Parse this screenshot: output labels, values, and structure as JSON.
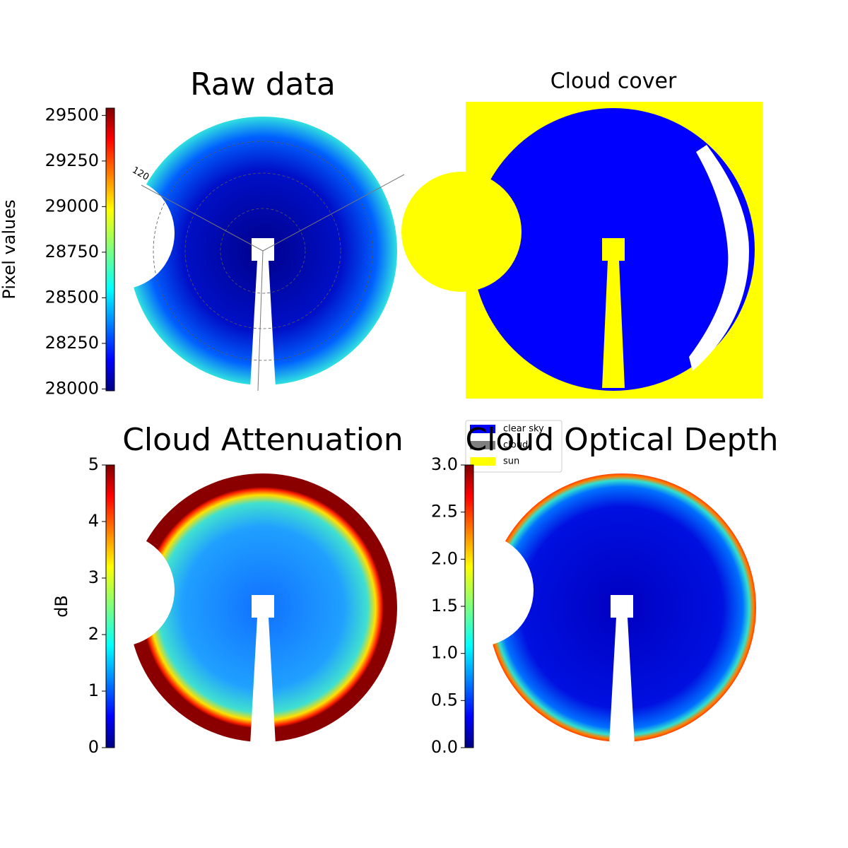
{
  "chart_data": [
    {
      "type": "image",
      "title": "Raw data",
      "colorbar_label": "Pixel values",
      "clim": [
        27990,
        29540
      ],
      "cticks": [
        28000,
        28250,
        28500,
        28750,
        29000,
        29250,
        29500
      ],
      "colormap": "jet",
      "annotations": [
        "120"
      ]
    },
    {
      "type": "classification",
      "title": "Cloud cover",
      "legend": [
        {
          "label": "clear sky",
          "color": "#0000ff"
        },
        {
          "label": "cloud",
          "color": "#808080"
        },
        {
          "label": "sun",
          "color": "#ffff00"
        }
      ]
    },
    {
      "type": "image",
      "title": "Cloud Attenuation",
      "colorbar_label": "dB",
      "clim": [
        0,
        5
      ],
      "cticks": [
        0,
        1,
        2,
        3,
        4,
        5
      ],
      "colormap": "jet"
    },
    {
      "type": "image",
      "title": "Cloud Optical Depth",
      "clim": [
        0,
        3
      ],
      "colormap": "jet",
      "cticks": [
        {
          "value": 0,
          "label": "0.0"
        },
        {
          "value": 0.5,
          "label": "0.5"
        },
        {
          "value": 1,
          "label": "1.0"
        },
        {
          "value": 1.5,
          "label": "1.5"
        },
        {
          "value": 2,
          "label": "2.0"
        },
        {
          "value": 2.5,
          "label": "2.5"
        },
        {
          "value": 3,
          "label": "3.0"
        }
      ]
    }
  ]
}
